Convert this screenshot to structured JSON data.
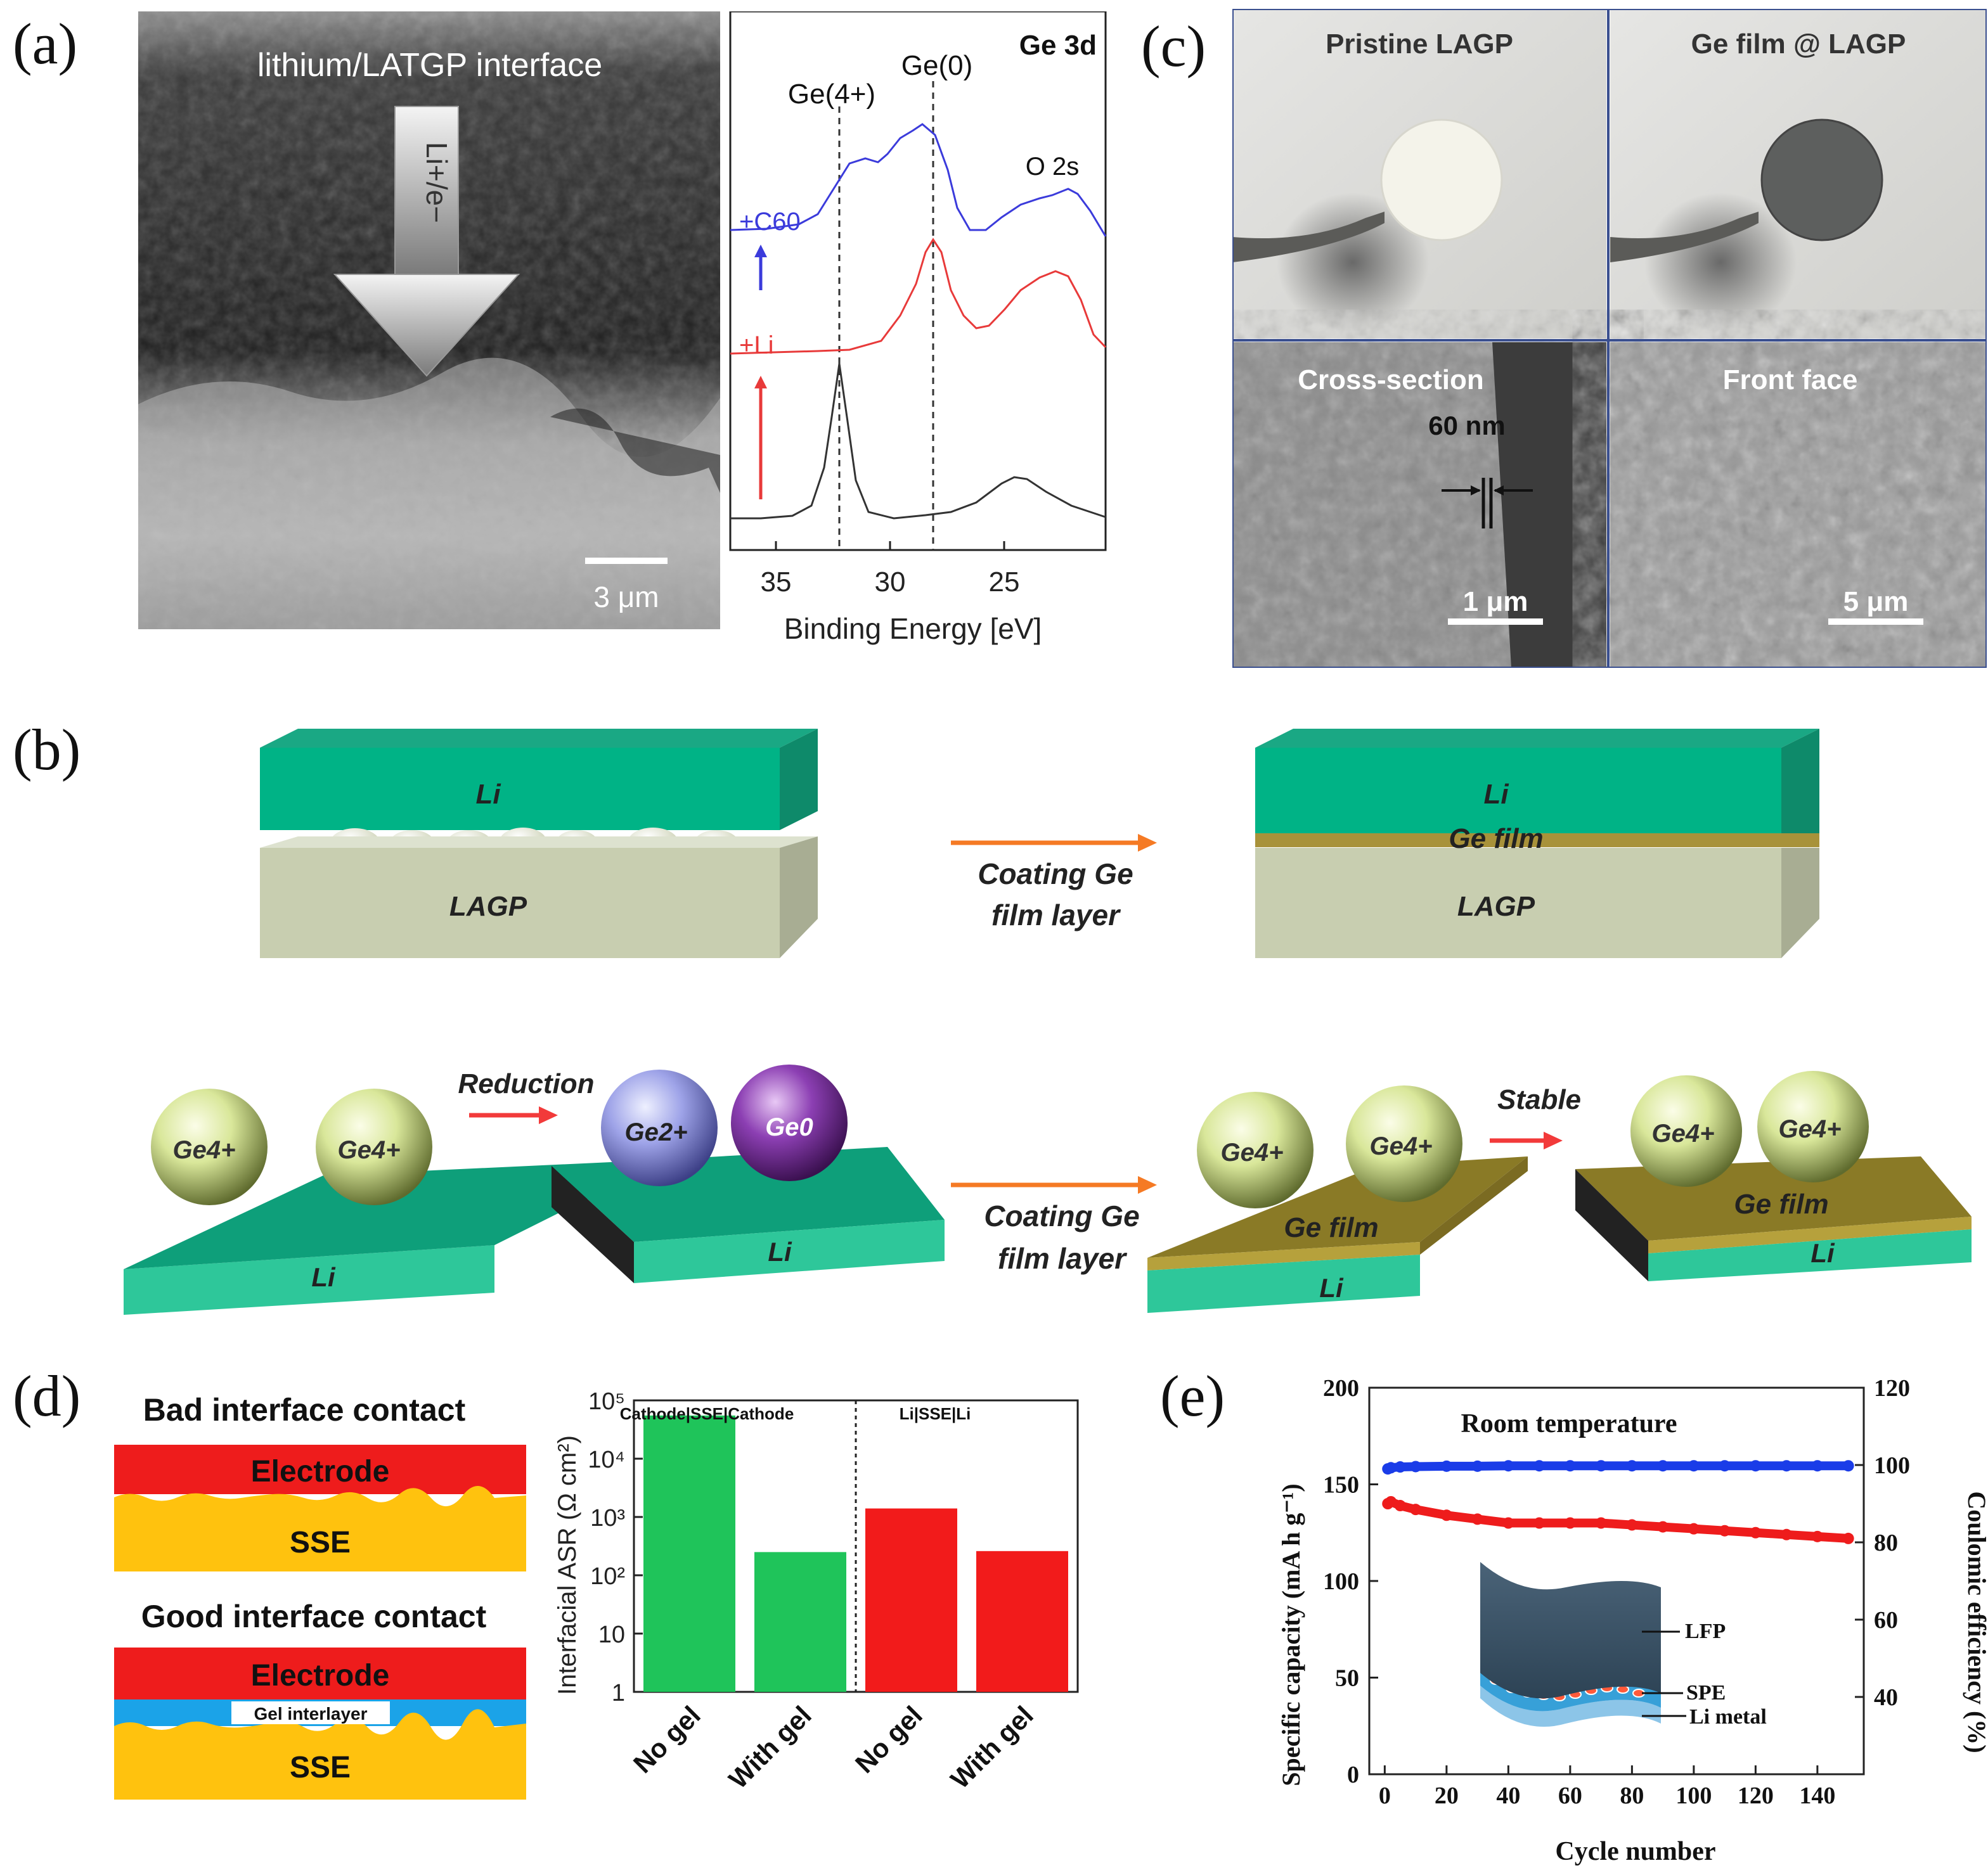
{
  "panel_labels": {
    "a": "(a)",
    "b": "(b)",
    "c": "(c)",
    "d": "(d)",
    "e": "(e)"
  },
  "panel_a": {
    "sem": {
      "title": "lithium/LATGP interface",
      "arrow_label": "Li+/e−",
      "scale_bar": "3 μm"
    },
    "xps": {
      "title": "Ge 3d",
      "xlabel": "Binding Energy [eV]",
      "xticks": [
        "35",
        "30",
        "25"
      ],
      "peak_labels": {
        "ge4": "Ge(4+)",
        "ge0": "Ge(0)",
        "o2s": "O 2s"
      },
      "trace_labels": {
        "c60": "+C60",
        "li": "+Li"
      },
      "colors": {
        "c60": "#3b3bdb",
        "li": "#e83a3a",
        "pristine": "#333333"
      }
    }
  },
  "panel_b": {
    "top_left": {
      "li": "Li",
      "lagp": "LAGP"
    },
    "top_arrow": {
      "line1": "Coating Ge",
      "line2": "film layer"
    },
    "top_right": {
      "li": "Li",
      "ge_film": "Ge film",
      "lagp": "LAGP"
    },
    "bottom": {
      "s1": {
        "ion1": "Ge4+",
        "ion2": "Ge4+",
        "base": "Li"
      },
      "arrow1": "Reduction",
      "s2": {
        "ion1": "Ge2+",
        "ion2": "Ge0",
        "base": "Li"
      },
      "arrow2": {
        "line1": "Coating Ge",
        "line2": "film layer"
      },
      "s3": {
        "ion1": "Ge4+",
        "ion2": "Ge4+",
        "film": "Ge film",
        "base": "Li"
      },
      "arrow3": "Stable",
      "s4": {
        "ion1": "Ge4+",
        "ion2": "Ge4+",
        "film": "Ge film",
        "base": "Li"
      }
    }
  },
  "panel_c": {
    "photo1": "Pristine LAGP",
    "photo2": "Ge film @ LAGP",
    "sem1": {
      "title": "Cross-section",
      "thickness": "60 nm",
      "scale": "1 μm"
    },
    "sem2": {
      "title": "Front face",
      "scale": "5 μm"
    }
  },
  "panel_d": {
    "bad": {
      "title": "Bad interface contact",
      "electrode": "Electrode",
      "sse": "SSE"
    },
    "good": {
      "title": "Good interface contact",
      "electrode": "Electrode",
      "gel": "Gel interlayer",
      "sse": "SSE"
    }
  },
  "chart_data": [
    {
      "type": "bar",
      "ylabel": "Interfacial ASR (Ω cm²)",
      "yscale": "log",
      "ylim": [
        1,
        100000
      ],
      "yticks": [
        "1",
        "10",
        "10²",
        "10³",
        "10⁴",
        "10⁵"
      ],
      "groups": [
        "Cathode|SSE|Cathode",
        "Li|SSE|Li"
      ],
      "categories": [
        "No gel",
        "With gel",
        "No gel",
        "With gel"
      ],
      "values": [
        55000,
        250,
        1400,
        260
      ],
      "colors": [
        "#1fc45a",
        "#1fc45a",
        "#f21b1b",
        "#f21b1b"
      ]
    },
    {
      "type": "scatter",
      "title": "Room temperature",
      "xlabel": "Cycle number",
      "ylabel": "Specific capacity (mA h g⁻¹)",
      "y2label": "Coulomic efficiency (%)",
      "xlim": [
        -5,
        155
      ],
      "ylim": [
        0,
        200
      ],
      "y2lim": [
        20,
        120
      ],
      "xticks": [
        "0",
        "20",
        "40",
        "60",
        "80",
        "100",
        "120",
        "140"
      ],
      "yticks": [
        "0",
        "50",
        "100",
        "150",
        "200"
      ],
      "y2ticks": [
        "40",
        "60",
        "80",
        "100",
        "120"
      ],
      "series": [
        {
          "name": "Capacity",
          "axis": "left",
          "color": "#ee1c1c",
          "x": [
            1,
            2,
            5,
            10,
            20,
            30,
            40,
            50,
            60,
            70,
            80,
            90,
            100,
            110,
            120,
            130,
            140,
            150
          ],
          "values": [
            140,
            141,
            139,
            137,
            134,
            132,
            130,
            130,
            130,
            130,
            129,
            128,
            127,
            126,
            125,
            124,
            123,
            122
          ]
        },
        {
          "name": "Coulombic efficiency",
          "axis": "right",
          "color": "#1a3ce8",
          "x": [
            1,
            2,
            5,
            10,
            20,
            30,
            40,
            50,
            60,
            70,
            80,
            90,
            100,
            110,
            120,
            130,
            140,
            150
          ],
          "values": [
            99,
            99.3,
            99.5,
            99.6,
            99.7,
            99.7,
            99.8,
            99.8,
            99.8,
            99.8,
            99.8,
            99.8,
            99.8,
            99.8,
            99.8,
            99.8,
            99.8,
            99.8
          ]
        }
      ],
      "inset": {
        "lfp": "LFP",
        "spe": "SPE",
        "li": "Li metal"
      }
    }
  ]
}
